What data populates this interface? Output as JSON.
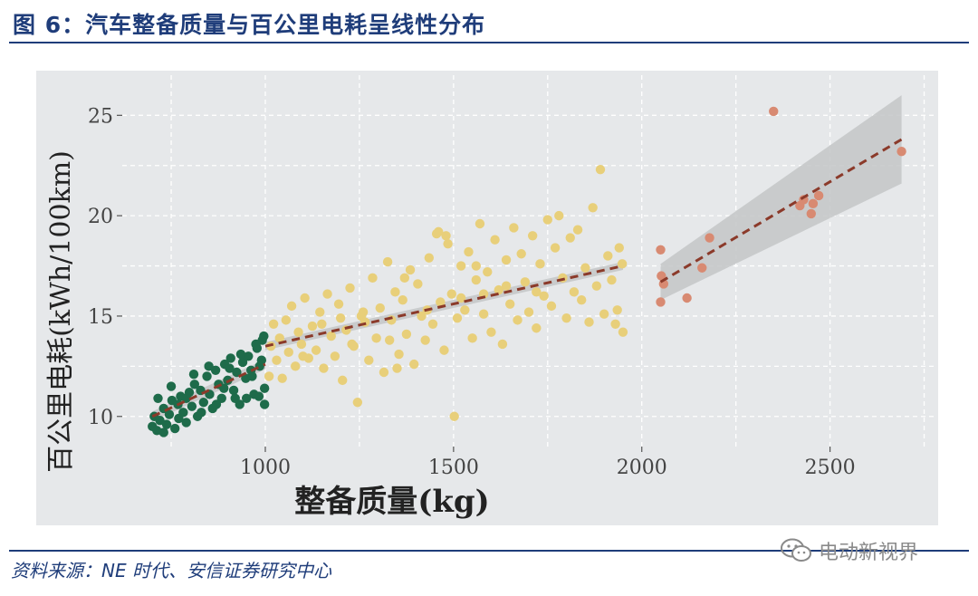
{
  "title": "图 6：汽车整备质量与百公里电耗呈线性分布",
  "source": "资料来源：NE 时代、安信证券研究中心",
  "watermark": {
    "text": "电动新视界",
    "icon": "wechat-icon"
  },
  "colors": {
    "panel_bg": "#e6e8ea",
    "grid": "#ffffff",
    "green": "#1e6b4a",
    "yellow": "#e8cf7a",
    "salmon": "#d88a72",
    "trend": "#8b3a2a",
    "ci_band": "#c3c5c7",
    "accent": "#1f3d7a"
  },
  "chart_data": {
    "type": "scatter",
    "xlabel": "整备质量(kg)",
    "ylabel": "百公里电耗(kWh/100km)",
    "xlim": [
      620,
      2780
    ],
    "ylim": [
      8.5,
      27
    ],
    "xticks": [
      1000,
      1500,
      2000,
      2500
    ],
    "yticks": [
      10,
      15,
      20,
      25
    ],
    "grid": true,
    "series": [
      {
        "group": "light",
        "color": "#1e6b4a",
        "points": [
          [
            700,
            9.5
          ],
          [
            705,
            10.0
          ],
          [
            712,
            9.3
          ],
          [
            720,
            9.8
          ],
          [
            730,
            10.4
          ],
          [
            738,
            9.6
          ],
          [
            745,
            10.1
          ],
          [
            752,
            10.8
          ],
          [
            760,
            9.4
          ],
          [
            768,
            10.6
          ],
          [
            775,
            11.0
          ],
          [
            782,
            10.2
          ],
          [
            790,
            9.7
          ],
          [
            798,
            11.2
          ],
          [
            805,
            10.5
          ],
          [
            812,
            11.6
          ],
          [
            820,
            10.0
          ],
          [
            828,
            11.3
          ],
          [
            836,
            10.7
          ],
          [
            845,
            12.0
          ],
          [
            852,
            11.1
          ],
          [
            860,
            10.4
          ],
          [
            868,
            12.3
          ],
          [
            876,
            11.6
          ],
          [
            884,
            10.9
          ],
          [
            892,
            12.6
          ],
          [
            900,
            11.8
          ],
          [
            908,
            12.9
          ],
          [
            916,
            11.3
          ],
          [
            924,
            12.2
          ],
          [
            932,
            10.6
          ],
          [
            940,
            12.7
          ],
          [
            948,
            11.9
          ],
          [
            955,
            13.0
          ],
          [
            962,
            12.3
          ],
          [
            970,
            11.1
          ],
          [
            978,
            13.4
          ],
          [
            985,
            12.5
          ],
          [
            992,
            13.8
          ],
          [
            998,
            11.4
          ],
          [
            998,
            10.6
          ],
          [
            996,
            14.0
          ],
          [
            990,
            12.8
          ],
          [
            983,
            11.0
          ],
          [
            975,
            13.6
          ],
          [
            965,
            12.0
          ],
          [
            950,
            10.9
          ],
          [
            935,
            13.1
          ],
          [
            920,
            10.9
          ],
          [
            905,
            12.4
          ],
          [
            890,
            11.4
          ],
          [
            870,
            10.6
          ],
          [
            850,
            12.5
          ],
          [
            830,
            10.2
          ],
          [
            810,
            12.1
          ],
          [
            790,
            10.9
          ],
          [
            770,
            9.9
          ],
          [
            750,
            11.5
          ],
          [
            730,
            9.2
          ],
          [
            715,
            10.9
          ]
        ]
      },
      {
        "group": "medium",
        "color": "#e8cf7a",
        "points": [
          [
            1010,
            12.0
          ],
          [
            1015,
            13.5
          ],
          [
            1022,
            14.6
          ],
          [
            1030,
            12.8
          ],
          [
            1038,
            13.9
          ],
          [
            1045,
            11.9
          ],
          [
            1055,
            14.8
          ],
          [
            1062,
            13.2
          ],
          [
            1070,
            15.5
          ],
          [
            1080,
            12.5
          ],
          [
            1088,
            14.2
          ],
          [
            1096,
            13.6
          ],
          [
            1105,
            15.9
          ],
          [
            1115,
            12.9
          ],
          [
            1125,
            14.5
          ],
          [
            1135,
            13.3
          ],
          [
            1145,
            15.2
          ],
          [
            1155,
            12.4
          ],
          [
            1165,
            16.1
          ],
          [
            1175,
            14.0
          ],
          [
            1185,
            13.0
          ],
          [
            1195,
            15.6
          ],
          [
            1205,
            11.8
          ],
          [
            1215,
            14.3
          ],
          [
            1225,
            16.4
          ],
          [
            1235,
            13.5
          ],
          [
            1245,
            10.7
          ],
          [
            1255,
            15.0
          ],
          [
            1265,
            14.7
          ],
          [
            1275,
            12.8
          ],
          [
            1285,
            16.9
          ],
          [
            1295,
            13.9
          ],
          [
            1305,
            15.4
          ],
          [
            1315,
            12.2
          ],
          [
            1325,
            17.7
          ],
          [
            1335,
            14.8
          ],
          [
            1345,
            16.2
          ],
          [
            1355,
            13.1
          ],
          [
            1365,
            15.8
          ],
          [
            1375,
            14.1
          ],
          [
            1385,
            17.3
          ],
          [
            1395,
            12.6
          ],
          [
            1405,
            16.6
          ],
          [
            1415,
            15.0
          ],
          [
            1425,
            13.8
          ],
          [
            1435,
            17.9
          ],
          [
            1445,
            14.6
          ],
          [
            1455,
            19.1
          ],
          [
            1465,
            15.7
          ],
          [
            1475,
            13.3
          ],
          [
            1485,
            18.6
          ],
          [
            1495,
            16.1
          ],
          [
            1502,
            10.0
          ],
          [
            1510,
            14.9
          ],
          [
            1520,
            17.5
          ],
          [
            1530,
            15.3
          ],
          [
            1540,
            18.2
          ],
          [
            1550,
            13.9
          ],
          [
            1560,
            16.8
          ],
          [
            1570,
            19.6
          ],
          [
            1580,
            15.1
          ],
          [
            1590,
            17.2
          ],
          [
            1600,
            14.2
          ],
          [
            1610,
            18.8
          ],
          [
            1620,
            16.3
          ],
          [
            1630,
            13.6
          ],
          [
            1640,
            17.8
          ],
          [
            1650,
            15.6
          ],
          [
            1660,
            19.4
          ],
          [
            1670,
            14.8
          ],
          [
            1680,
            18.1
          ],
          [
            1690,
            16.7
          ],
          [
            1700,
            15.2
          ],
          [
            1710,
            19.0
          ],
          [
            1720,
            14.4
          ],
          [
            1730,
            17.6
          ],
          [
            1740,
            16.0
          ],
          [
            1750,
            19.8
          ],
          [
            1760,
            15.5
          ],
          [
            1770,
            18.4
          ],
          [
            1780,
            20.0
          ],
          [
            1790,
            16.9
          ],
          [
            1800,
            14.9
          ],
          [
            1810,
            18.9
          ],
          [
            1820,
            16.2
          ],
          [
            1830,
            19.3
          ],
          [
            1840,
            15.8
          ],
          [
            1850,
            17.4
          ],
          [
            1860,
            14.7
          ],
          [
            1870,
            20.4
          ],
          [
            1880,
            16.5
          ],
          [
            1890,
            22.3
          ],
          [
            1900,
            15.1
          ],
          [
            1910,
            18.0
          ],
          [
            1920,
            16.8
          ],
          [
            1930,
            14.6
          ],
          [
            1940,
            18.4
          ],
          [
            1950,
            14.2
          ],
          [
            1948,
            17.6
          ],
          [
            1935,
            15.3
          ],
          [
            1460,
            19.2
          ],
          [
            1480,
            19.0
          ],
          [
            1260,
            15.2
          ],
          [
            1200,
            14.9
          ],
          [
            1230,
            13.6
          ],
          [
            1150,
            14.6
          ],
          [
            1100,
            13.0
          ],
          [
            1350,
            12.4
          ],
          [
            1370,
            16.9
          ],
          [
            1560,
            17.5
          ],
          [
            1580,
            16.1
          ],
          [
            1640,
            16.5
          ],
          [
            1720,
            16.2
          ],
          [
            1330,
            13.8
          ],
          [
            1430,
            15.3
          ],
          [
            1520,
            15.9
          ]
        ]
      },
      {
        "group": "heavy",
        "color": "#d88a72",
        "points": [
          [
            2050,
            18.3
          ],
          [
            2052,
            17.0
          ],
          [
            2050,
            15.7
          ],
          [
            2058,
            16.6
          ],
          [
            2120,
            15.9
          ],
          [
            2160,
            17.4
          ],
          [
            2180,
            18.9
          ],
          [
            2350,
            25.2
          ],
          [
            2420,
            20.5
          ],
          [
            2430,
            20.8
          ],
          [
            2450,
            20.1
          ],
          [
            2455,
            20.6
          ],
          [
            2470,
            21.0
          ],
          [
            2690,
            23.2
          ]
        ]
      }
    ],
    "trend_lines": [
      {
        "x": [
          700,
          1000
        ],
        "y": [
          10.0,
          12.6
        ],
        "band_halfwidth": 0.25
      },
      {
        "x": [
          1000,
          1950
        ],
        "y": [
          13.5,
          17.5
        ],
        "band_halfwidth": 0.2
      },
      {
        "x": [
          2050,
          2690
        ],
        "y": [
          16.7,
          23.8
        ],
        "band_halfwidth_start": 0.9,
        "band_halfwidth_end": 2.2
      }
    ]
  }
}
